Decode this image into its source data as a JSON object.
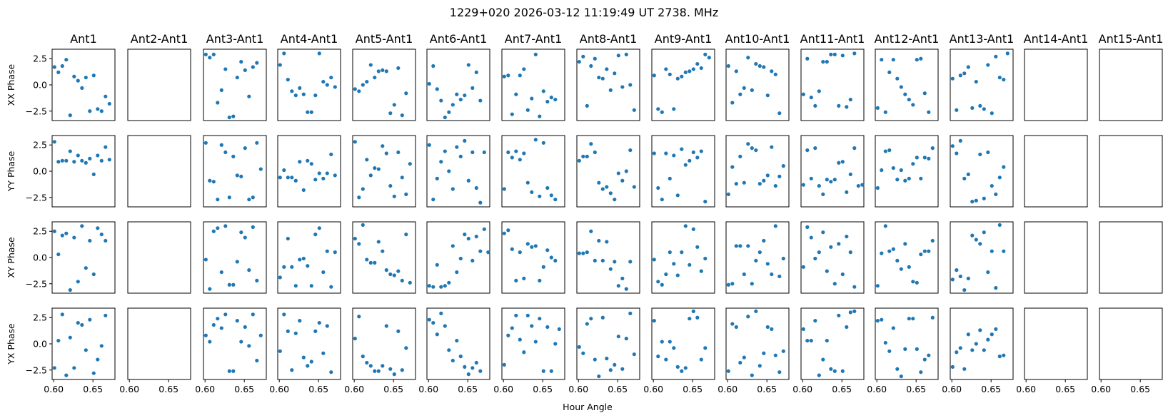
{
  "chart_data": {
    "type": "scatter",
    "title": "1229+020  2026-03-12 11:19:49 UT  2738. MHz",
    "xlabel": "Hour Angle",
    "columns": [
      "Ant1",
      "Ant2-Ant1",
      "Ant3-Ant1",
      "Ant4-Ant1",
      "Ant5-Ant1",
      "Ant6-Ant1",
      "Ant7-Ant1",
      "Ant8-Ant1",
      "Ant9-Ant1",
      "Ant10-Ant1",
      "Ant11-Ant1",
      "Ant12-Ant1",
      "Ant13-Ant1",
      "Ant14-Ant1",
      "Ant15-Ant1"
    ],
    "rows": [
      "XX Phase",
      "YY Phase",
      "XY Phase",
      "YX Phase"
    ],
    "xlim": [
      0.598,
      0.678
    ],
    "ylim": [
      -3.4,
      3.4
    ],
    "xticks": [
      0.6,
      0.65
    ],
    "xtick_labels": [
      "0.60",
      "0.65"
    ],
    "yticks": [
      2.5,
      0.0,
      -2.5
    ],
    "ytick_labels": [
      "2.5",
      "0.0",
      "−2.5"
    ],
    "x": [
      0.601,
      0.606,
      0.611,
      0.616,
      0.621,
      0.626,
      0.631,
      0.636,
      0.641,
      0.646,
      0.651,
      0.656,
      0.661,
      0.666,
      0.671,
      0.676
    ],
    "empty_columns": [
      1,
      13,
      14
    ],
    "grid": false,
    "series": [
      [
        [
          1.7,
          1.2,
          1.8,
          2.4,
          -2.9,
          0.8,
          0.4,
          -0.3,
          0.7,
          -2.5,
          0.9,
          -2.3,
          -2.5,
          -1.1,
          -1.8
        ],
        null,
        [
          2.9,
          2.6,
          2.9,
          -1.7,
          -0.5,
          1.5,
          -3.1,
          -3.0,
          0.7,
          2.2,
          1.4,
          -1.1,
          1.7,
          2.1
        ],
        [
          1.9,
          3.0,
          0.5,
          -0.6,
          -1.0,
          -0.3,
          -0.9,
          -2.6,
          -2.6,
          -1.0,
          3.0,
          0.3,
          0.0,
          0.7,
          -0.2
        ],
        [
          -0.4,
          -0.6,
          0.0,
          0.3,
          1.9,
          0.7,
          1.3,
          1.4,
          1.3,
          -2.7,
          -1.9,
          1.6,
          -2.9,
          -0.8
        ],
        [
          0.1,
          1.8,
          -0.4,
          -1.5,
          -3.1,
          -2.6,
          -1.9,
          -0.9,
          -1.4,
          -1.0,
          1.9,
          -0.3,
          1.2,
          -1.5
        ],
        [
          0.8,
          0.9,
          -2.8,
          -0.9,
          0.9,
          1.5,
          -2.4,
          -1.3,
          2.9,
          -3.0,
          -0.6,
          -1.6,
          -1.2,
          -1.4
        ],
        [
          2.2,
          2.7,
          -2.0,
          1.8,
          2.5,
          0.7,
          0.6,
          1.5,
          -0.5,
          1.1,
          2.8,
          -0.2,
          2.9,
          0.0,
          -2.4
        ],
        [
          0.9,
          -2.3,
          -2.6,
          1.5,
          1.0,
          -2.3,
          0.6,
          0.8,
          1.2,
          1.3,
          1.5,
          2.0,
          1.6,
          2.9,
          2.6
        ],
        [
          1.8,
          -1.7,
          1.3,
          -0.9,
          -0.3,
          2.6,
          -0.5,
          2.0,
          1.8,
          1.7,
          -1.0,
          1.3,
          1.0,
          -2.7
        ],
        [
          -0.9,
          2.5,
          -1.2,
          -2.0,
          -0.6,
          2.2,
          2.2,
          2.9,
          2.9,
          -2.0,
          2.8,
          -2.1,
          -1.4,
          3.0
        ],
        [
          -2.2,
          2.4,
          -2.6,
          1.2,
          2.4,
          0.6,
          -0.2,
          -0.9,
          -1.4,
          -1.9,
          2.4,
          2.5,
          -0.8,
          -2.6
        ],
        [
          0.6,
          -2.4,
          0.9,
          1.1,
          1.7,
          -2.2,
          0.3,
          -2.0,
          -2.3,
          1.9,
          -2.7,
          2.7,
          0.7,
          0.5,
          3.0
        ],
        null,
        null
      ],
      [
        [
          2.8,
          0.9,
          1.0,
          1.0,
          1.9,
          0.9,
          1.5,
          1.0,
          0.8,
          1.2,
          -0.3,
          1.5,
          1.0,
          2.3,
          1.1
        ],
        null,
        [
          2.7,
          -0.9,
          -1.0,
          -2.7,
          2.5,
          1.8,
          -2.5,
          1.4,
          -0.4,
          -0.5,
          2.2,
          -2.7,
          -2.5,
          2.7,
          0.2
        ],
        [
          -0.6,
          0.1,
          -0.6,
          -0.6,
          -0.9,
          0.9,
          -1.8,
          1.0,
          0.7,
          -0.8,
          -0.2,
          -0.7,
          -0.2,
          1.6,
          -0.4
        ],
        [
          2.8,
          -2.5,
          -1.7,
          1.1,
          -0.4,
          0.3,
          0.2,
          2.4,
          1.7,
          -1.4,
          -2.4,
          1.8,
          -0.6,
          -2.2,
          0.7
        ],
        [
          2.5,
          -2.7,
          -0.7,
          0.9,
          1.9,
          0.0,
          -1.7,
          2.3,
          1.4,
          2.9,
          -0.9,
          1.8,
          -1.6,
          -3.0,
          1.8
        ],
        [
          -1.7,
          1.8,
          1.3,
          1.9,
          1.1,
          1.7,
          -1.1,
          -2.0,
          3.0,
          -2.4,
          2.7,
          -1.6,
          -2.3,
          -2.7
        ],
        [
          1.0,
          1.4,
          1.4,
          2.6,
          1.8,
          -1.1,
          -1.7,
          -1.5,
          -2.1,
          -2.7,
          -0.2,
          -0.9,
          0.0,
          2.0,
          -1.5
        ],
        [
          1.7,
          -1.6,
          -2.7,
          1.7,
          -0.7,
          1.5,
          -2.3,
          2.1,
          0.6,
          1.0,
          1.8,
          1.3,
          1.9,
          -2.9
        ],
        [
          -2.2,
          0.4,
          -1.2,
          1.4,
          -1.1,
          2.6,
          2.2,
          2.0,
          -1.2,
          -0.9,
          -0.4,
          2.3,
          -1.4,
          -0.5,
          0.5
        ],
        [
          -1.3,
          2.0,
          -0.7,
          2.2,
          -1.4,
          -2.2,
          -0.8,
          -1.0,
          -0.8,
          0.8,
          0.9,
          -2.0,
          -0.3,
          2.2,
          -1.4,
          -1.3
        ],
        [
          -1.6,
          0.1,
          1.9,
          2.0,
          0.3,
          -0.8,
          0.1,
          -0.9,
          -0.7,
          0.7,
          1.3,
          -0.7,
          1.3,
          1.2,
          2.2
        ],
        [
          2.4,
          1.7,
          2.9,
          -0.7,
          -0.3,
          -2.9,
          -2.8,
          1.6,
          -2.6,
          1.8,
          -1.4,
          -2.2,
          -0.6,
          0.4
        ],
        null,
        null
      ],
      [
        [
          2.5,
          0.3,
          2.1,
          2.3,
          -3.1,
          1.9,
          -2.3,
          3.0,
          -1.0,
          1.6,
          -1.6,
          2.8,
          2.2,
          1.6
        ],
        null,
        [
          -0.2,
          -3.0,
          2.5,
          2.8,
          -1.4,
          3.0,
          -2.6,
          -2.6,
          -0.4,
          2.4,
          1.9,
          -1.2,
          2.9,
          -2.2
        ],
        [
          -1.9,
          -0.9,
          1.8,
          -0.9,
          -2.7,
          -0.2,
          -0.1,
          -0.8,
          -2.7,
          2.2,
          2.8,
          -1.4,
          0.6,
          -2.8,
          0.5
        ],
        [
          1.8,
          1.3,
          3.1,
          -0.2,
          -0.5,
          -0.5,
          1.5,
          0.6,
          -1.2,
          -1.6,
          -1.7,
          -1.3,
          -2.2,
          2.2,
          -2.4
        ],
        [
          -2.7,
          -2.8,
          -0.7,
          -2.8,
          -2.7,
          -2.4,
          1.1,
          -1.4,
          -0.1,
          2.2,
          1.8,
          -0.3,
          2.0,
          0.6,
          2.7,
          0.5
        ],
        [
          2.3,
          2.6,
          0.8,
          -2.2,
          0.5,
          -2.0,
          1.3,
          1.0,
          1.1,
          -2.2,
          -0.9,
          0.7,
          0.0,
          -0.3
        ],
        [
          0.4,
          0.4,
          0.5,
          2.5,
          -0.3,
          1.6,
          -0.3,
          1.5,
          -1.1,
          -0.4,
          -2.7,
          -2.0,
          -3.0,
          -0.4
        ],
        [
          -0.2,
          -2.3,
          -2.6,
          -1.6,
          0.5,
          -0.6,
          -1.7,
          0.5,
          3.0,
          -0.7,
          2.7,
          1.0,
          -1.3,
          -0.1
        ],
        [
          -2.6,
          -2.5,
          1.1,
          1.1,
          -1.6,
          1.1,
          -2.5,
          -0.3,
          0.5,
          1.6,
          -0.6,
          -1.6,
          3.0,
          -1.8,
          -0.1
        ],
        [
          -0.9,
          2.9,
          1.9,
          -0.1,
          0.5,
          2.4,
          -1.3,
          1.0,
          -2.5,
          1.3,
          -1.6,
          2.0,
          0.5,
          -2.8
        ],
        [
          -2.7,
          0.4,
          3.0,
          0.6,
          0.8,
          -0.3,
          -1.1,
          1.3,
          -0.9,
          -2.3,
          -2.4,
          0.3,
          0.6,
          0.6,
          1.6
        ],
        [
          -2.1,
          -1.2,
          -1.8,
          -3.1,
          -2.0,
          2.1,
          1.7,
          1.3,
          2.4,
          -1.4,
          0.6,
          -2.9,
          3.1,
          0.6
        ],
        null,
        null
      ],
      [
        [
          -2.3,
          0.3,
          2.8,
          -3.0,
          0.6,
          -2.3,
          2.0,
          1.8,
          -0.6,
          2.3,
          -2.8,
          -1.5,
          -0.2,
          2.7
        ],
        null,
        [
          0.8,
          0.2,
          1.8,
          2.4,
          1.5,
          2.8,
          -2.6,
          -2.6,
          2.2,
          0.2,
          1.6,
          -0.2,
          2.8,
          -1.6,
          0.8
        ],
        [
          -0.7,
          2.8,
          1.2,
          -2.5,
          1.0,
          2.2,
          -1.3,
          -2.1,
          -1.7,
          1.2,
          2.0,
          -0.9,
          1.7,
          -2.7
        ],
        [
          0.5,
          2.6,
          -1.2,
          -1.8,
          -2.1,
          -2.6,
          -2.6,
          -2.1,
          1.7,
          -2.4,
          -2.9,
          1.2,
          -2.5,
          -0.4
        ],
        [
          2.3,
          2.0,
          0.9,
          2.9,
          1.7,
          -0.6,
          -1.6,
          0.3,
          -1.2,
          -2.2,
          -2.9,
          -2.3,
          -1.8,
          -2.6
        ],
        [
          -2.0,
          0.8,
          1.5,
          2.7,
          0.4,
          -0.8,
          2.7,
          1.7,
          0.2,
          2.4,
          -2.6,
          1.6,
          -2.6,
          0.0,
          1.4
        ],
        [
          -0.3,
          -0.9,
          1.9,
          2.4,
          -1.5,
          -3.1,
          2.5,
          -1.4,
          -2.5,
          -2.0,
          0.7,
          -2.4,
          0.5,
          2.9,
          -1.0
        ],
        [
          2.2,
          -1.2,
          0.2,
          -1.5,
          0.2,
          -0.4,
          -2.2,
          -2.6,
          -2.3,
          2.4,
          3.1,
          2.5,
          -1.5,
          -0.4
        ],
        [
          -2.6,
          1.9,
          1.6,
          -1.8,
          -1.3,
          2.6,
          -3.0,
          3.1,
          -2.1,
          -0.9,
          1.6,
          1.4,
          -1.1,
          -2.7,
          -0.7
        ],
        [
          1.4,
          0.3,
          0.3,
          2.2,
          -3.0,
          -1.5,
          0.3,
          -2.4,
          -2.6,
          2.7,
          -2.6,
          1.6,
          3.0,
          3.1
        ],
        [
          2.2,
          2.3,
          0.1,
          -0.7,
          1.5,
          -2.4,
          -3.1,
          -0.5,
          2.4,
          2.4,
          -0.5,
          -2.7,
          -1.5,
          -1.1,
          2.5
        ],
        [
          -2.2,
          -0.8,
          -0.4,
          -2.4,
          0.9,
          -0.6,
          0.0,
          1.3,
          -0.6,
          0.4,
          0.9,
          1.4,
          -1.2,
          -1.1
        ],
        null,
        null
      ]
    ]
  }
}
